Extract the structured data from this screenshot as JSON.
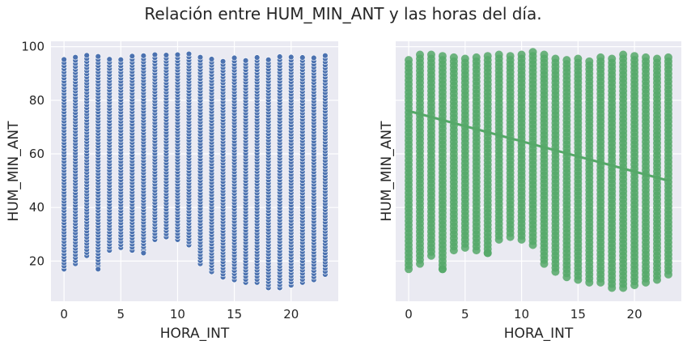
{
  "title": "Relación entre HUM_MIN_ANT y las horas del día.",
  "colors": {
    "background": "#eaeaf2",
    "grid": "#ffffff",
    "left_points": "#4c72b0",
    "right_points": "#55a868",
    "text": "#262626"
  },
  "chart_data": [
    {
      "type": "scatter",
      "xlabel": "HORA_INT",
      "ylabel": "HUM_MIN_ANT",
      "xlim": [
        -1.15,
        24.15
      ],
      "ylim": [
        5,
        102
      ],
      "xticks": [
        0,
        5,
        10,
        15,
        20
      ],
      "yticks": [
        20,
        40,
        60,
        80,
        100
      ],
      "grid": true,
      "color": "#4c72b0",
      "marker": "circle-with-white-edge",
      "point_ranges": [
        {
          "x": 0,
          "min": 17,
          "max": 96
        },
        {
          "x": 1,
          "min": 19,
          "max": 97
        },
        {
          "x": 2,
          "min": 22,
          "max": 97
        },
        {
          "x": 3,
          "min": 17,
          "max": 97
        },
        {
          "x": 4,
          "min": 24,
          "max": 96
        },
        {
          "x": 5,
          "min": 25,
          "max": 96
        },
        {
          "x": 6,
          "min": 24,
          "max": 97
        },
        {
          "x": 7,
          "min": 23,
          "max": 97
        },
        {
          "x": 8,
          "min": 28,
          "max": 97
        },
        {
          "x": 9,
          "min": 29,
          "max": 97
        },
        {
          "x": 10,
          "min": 28,
          "max": 98
        },
        {
          "x": 11,
          "min": 26,
          "max": 98
        },
        {
          "x": 12,
          "min": 19,
          "max": 97
        },
        {
          "x": 13,
          "min": 16,
          "max": 96
        },
        {
          "x": 14,
          "min": 14,
          "max": 95
        },
        {
          "x": 15,
          "min": 13,
          "max": 96
        },
        {
          "x": 16,
          "min": 12,
          "max": 95
        },
        {
          "x": 17,
          "min": 12,
          "max": 96
        },
        {
          "x": 18,
          "min": 10,
          "max": 96
        },
        {
          "x": 19,
          "min": 10,
          "max": 97
        },
        {
          "x": 20,
          "min": 11,
          "max": 97
        },
        {
          "x": 21,
          "min": 12,
          "max": 96
        },
        {
          "x": 22,
          "min": 13,
          "max": 96
        },
        {
          "x": 23,
          "min": 15,
          "max": 97
        }
      ],
      "outliers": [
        {
          "x": 3,
          "y": 17
        },
        {
          "x": 7,
          "y": 23
        }
      ]
    },
    {
      "type": "scatter",
      "xlabel": "HORA_INT",
      "ylabel": "HUM_MIN_ANT",
      "xlim": [
        -1.15,
        24.15
      ],
      "ylim": [
        5,
        102
      ],
      "xticks": [
        0,
        5,
        10,
        15,
        20
      ],
      "yticks_visible": false,
      "grid": true,
      "color": "#55a868",
      "marker": "large-circle",
      "point_ranges": [
        {
          "x": 0,
          "min": 17,
          "max": 96
        },
        {
          "x": 1,
          "min": 19,
          "max": 97
        },
        {
          "x": 2,
          "min": 22,
          "max": 97
        },
        {
          "x": 3,
          "min": 17,
          "max": 97
        },
        {
          "x": 4,
          "min": 24,
          "max": 96
        },
        {
          "x": 5,
          "min": 25,
          "max": 96
        },
        {
          "x": 6,
          "min": 24,
          "max": 97
        },
        {
          "x": 7,
          "min": 23,
          "max": 97
        },
        {
          "x": 8,
          "min": 28,
          "max": 97
        },
        {
          "x": 9,
          "min": 29,
          "max": 97
        },
        {
          "x": 10,
          "min": 28,
          "max": 98
        },
        {
          "x": 11,
          "min": 26,
          "max": 98
        },
        {
          "x": 12,
          "min": 19,
          "max": 97
        },
        {
          "x": 13,
          "min": 16,
          "max": 96
        },
        {
          "x": 14,
          "min": 14,
          "max": 95
        },
        {
          "x": 15,
          "min": 13,
          "max": 96
        },
        {
          "x": 16,
          "min": 12,
          "max": 95
        },
        {
          "x": 17,
          "min": 12,
          "max": 96
        },
        {
          "x": 18,
          "min": 10,
          "max": 96
        },
        {
          "x": 19,
          "min": 10,
          "max": 97
        },
        {
          "x": 20,
          "min": 11,
          "max": 97
        },
        {
          "x": 21,
          "min": 12,
          "max": 96
        },
        {
          "x": 22,
          "min": 13,
          "max": 96
        },
        {
          "x": 23,
          "min": 15,
          "max": 97
        }
      ],
      "outliers": [
        {
          "x": 3,
          "y": 17
        },
        {
          "x": 7,
          "y": 23
        }
      ],
      "regression_line": {
        "x": [
          0,
          23
        ],
        "y": [
          76,
          50
        ]
      }
    }
  ]
}
